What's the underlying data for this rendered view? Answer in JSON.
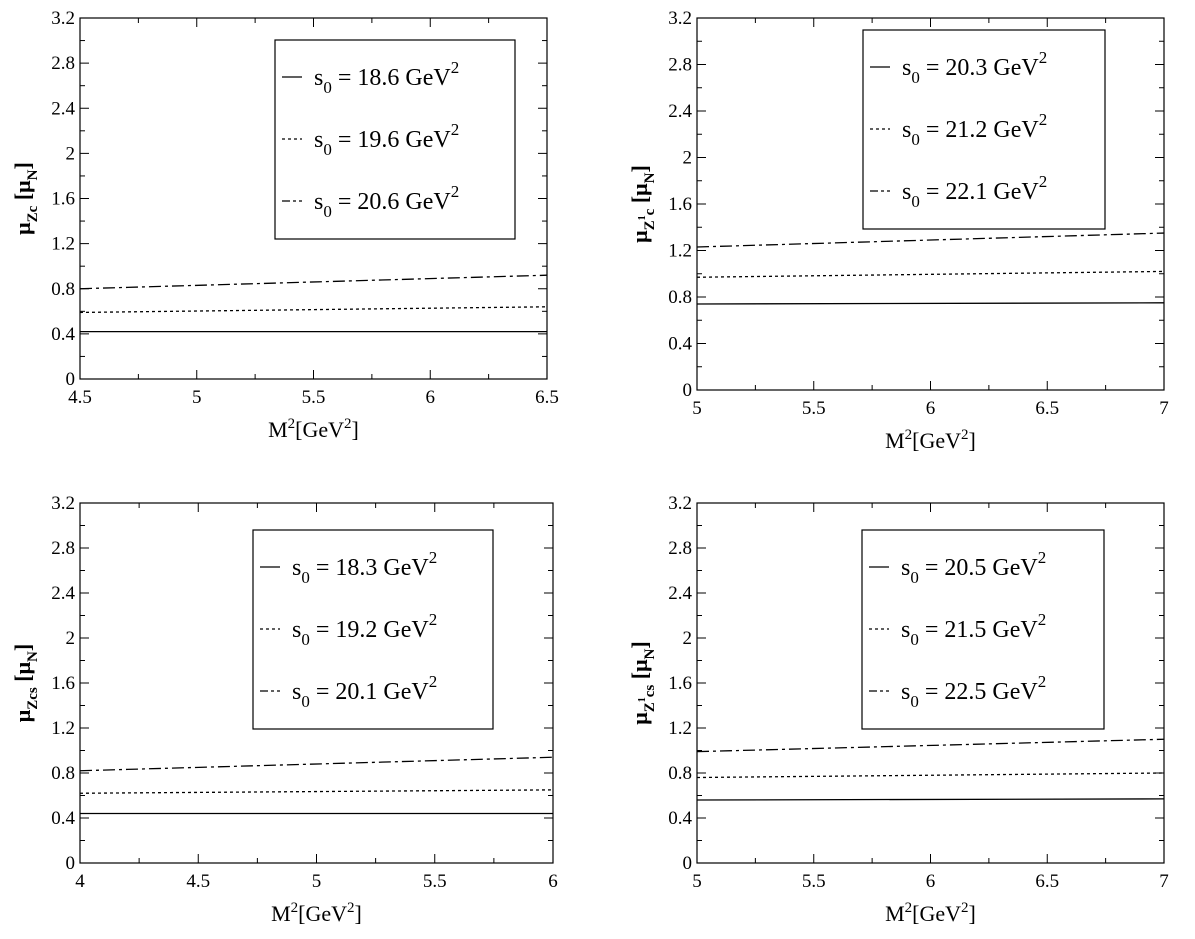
{
  "chart_data": [
    {
      "type": "line",
      "xlabel": {
        "base": "M",
        "sup1": "2",
        "mid": "[GeV",
        "sup2": "2",
        "end": "]"
      },
      "ylabel": {
        "base": "μ",
        "sub": "Zc",
        "unit": "[μ",
        "unit_sub": "N",
        "unit_end": "]"
      },
      "xlim": [
        4.5,
        6.5
      ],
      "ylim": [
        0,
        3.2
      ],
      "xticks": [
        "4.5",
        "5",
        "5.5",
        "6",
        "6.5"
      ],
      "yticks": [
        "0",
        "0.4",
        "0.8",
        "1.2",
        "1.6",
        "2",
        "2.4",
        "2.8",
        "3.2"
      ],
      "legend_position": "top-right",
      "series": [
        {
          "name": {
            "pre": "s",
            "sub": "0",
            "post": " = 18.6 GeV",
            "sup": "2"
          },
          "style": "solid",
          "x": [
            4.5,
            6.5
          ],
          "y": [
            0.42,
            0.42
          ]
        },
        {
          "name": {
            "pre": "s",
            "sub": "0",
            "post": " = 19.6 GeV",
            "sup": "2"
          },
          "style": "dotted",
          "x": [
            4.5,
            6.5
          ],
          "y": [
            0.59,
            0.64
          ]
        },
        {
          "name": {
            "pre": "s",
            "sub": "0",
            "post": " = 20.6 GeV",
            "sup": "2"
          },
          "style": "dashdot",
          "x": [
            4.5,
            6.5
          ],
          "y": [
            0.8,
            0.92
          ]
        }
      ]
    },
    {
      "type": "line",
      "xlabel": {
        "base": "M",
        "sup1": "2",
        "mid": "[GeV",
        "sup2": "2",
        "end": "]"
      },
      "ylabel": {
        "base": "μ",
        "sub": "Z",
        "sub_sup": "1",
        "sub_tail": "c",
        "unit": "[μ",
        "unit_sub": "N",
        "unit_end": "]"
      },
      "xlim": [
        5,
        7
      ],
      "ylim": [
        0,
        3.2
      ],
      "xticks": [
        "5",
        "5.5",
        "6",
        "6.5",
        "7"
      ],
      "yticks": [
        "0",
        "0.4",
        "0.8",
        "1.2",
        "1.6",
        "2",
        "2.4",
        "2.8",
        "3.2"
      ],
      "legend_position": "top-right",
      "series": [
        {
          "name": {
            "pre": "s",
            "sub": "0",
            "post": " = 20.3 GeV",
            "sup": "2"
          },
          "style": "solid",
          "x": [
            5,
            7
          ],
          "y": [
            0.74,
            0.75
          ]
        },
        {
          "name": {
            "pre": "s",
            "sub": "0",
            "post": " = 21.2 GeV",
            "sup": "2"
          },
          "style": "dotted",
          "x": [
            5,
            7
          ],
          "y": [
            0.97,
            1.02
          ]
        },
        {
          "name": {
            "pre": "s",
            "sub": "0",
            "post": " = 22.1 GeV",
            "sup": "2"
          },
          "style": "dashdot",
          "x": [
            5,
            7
          ],
          "y": [
            1.23,
            1.35
          ]
        }
      ]
    },
    {
      "type": "line",
      "xlabel": {
        "base": "M",
        "sup1": "2",
        "mid": "[GeV",
        "sup2": "2",
        "end": "]"
      },
      "ylabel": {
        "base": "μ",
        "sub": "Zcs",
        "unit": "[μ",
        "unit_sub": "N",
        "unit_end": "]"
      },
      "xlim": [
        4,
        6
      ],
      "ylim": [
        0,
        3.2
      ],
      "xticks": [
        "4",
        "4.5",
        "5",
        "5.5",
        "6"
      ],
      "yticks": [
        "0",
        "0.4",
        "0.8",
        "1.2",
        "1.6",
        "2",
        "2.4",
        "2.8",
        "3.2"
      ],
      "legend_position": "top-right",
      "series": [
        {
          "name": {
            "pre": "s",
            "sub": "0",
            "post": " = 18.3 GeV",
            "sup": "2"
          },
          "style": "solid",
          "x": [
            4,
            6
          ],
          "y": [
            0.44,
            0.44
          ]
        },
        {
          "name": {
            "pre": "s",
            "sub": "0",
            "post": " = 19.2 GeV",
            "sup": "2"
          },
          "style": "dotted",
          "x": [
            4,
            6
          ],
          "y": [
            0.62,
            0.65
          ]
        },
        {
          "name": {
            "pre": "s",
            "sub": "0",
            "post": " = 20.1 GeV",
            "sup": "2"
          },
          "style": "dashdot",
          "x": [
            4,
            6
          ],
          "y": [
            0.82,
            0.94
          ]
        }
      ]
    },
    {
      "type": "line",
      "xlabel": {
        "base": "M",
        "sup1": "2",
        "mid": "[GeV",
        "sup2": "2",
        "end": "]"
      },
      "ylabel": {
        "base": "μ",
        "sub": "Z",
        "sub_sup": "1",
        "sub_tail": "cs",
        "unit": "[μ",
        "unit_sub": "N",
        "unit_end": "]"
      },
      "xlim": [
        5,
        7
      ],
      "ylim": [
        0,
        3.2
      ],
      "xticks": [
        "5",
        "5.5",
        "6",
        "6.5",
        "7"
      ],
      "yticks": [
        "0",
        "0.4",
        "0.8",
        "1.2",
        "1.6",
        "2",
        "2.4",
        "2.8",
        "3.2"
      ],
      "legend_position": "top-right",
      "series": [
        {
          "name": {
            "pre": "s",
            "sub": "0",
            "post": " = 20.5 GeV",
            "sup": "2"
          },
          "style": "solid",
          "x": [
            5,
            7
          ],
          "y": [
            0.56,
            0.57
          ]
        },
        {
          "name": {
            "pre": "s",
            "sub": "0",
            "post": " = 21.5 GeV",
            "sup": "2"
          },
          "style": "dotted",
          "x": [
            5,
            7
          ],
          "y": [
            0.76,
            0.8
          ]
        },
        {
          "name": {
            "pre": "s",
            "sub": "0",
            "post": " = 22.5 GeV",
            "sup": "2"
          },
          "style": "dashdot",
          "x": [
            5,
            7
          ],
          "y": [
            0.99,
            1.1
          ]
        }
      ]
    }
  ]
}
